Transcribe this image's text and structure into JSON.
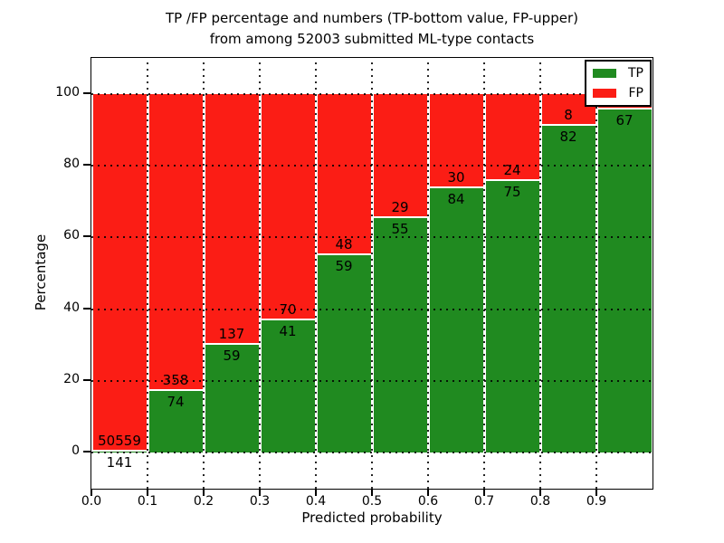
{
  "chart_data": {
    "type": "bar",
    "stacked": true,
    "title_line1": "TP /FP percentage and numbers (TP-bottom value, FP-upper)",
    "title_line2": "from among 52003 submitted ML-type contacts",
    "xlabel": "Predicted probability",
    "ylabel": "Percentage",
    "ylim": [
      -10,
      110
    ],
    "ytick_values": [
      0,
      20,
      40,
      60,
      80,
      100
    ],
    "ytick_labels": [
      "0",
      "20",
      "40",
      "60",
      "80",
      "100"
    ],
    "xtick_values": [
      0.0,
      0.1,
      0.2,
      0.3,
      0.4,
      0.5,
      0.6,
      0.7,
      0.8,
      0.9
    ],
    "xtick_labels": [
      "0.0",
      "0.1",
      "0.2",
      "0.3",
      "0.4",
      "0.5",
      "0.6",
      "0.7",
      "0.8",
      "0.9"
    ],
    "grid": "dotted, both axes",
    "categories": [
      "0.0-0.1",
      "0.1-0.2",
      "0.2-0.3",
      "0.3-0.4",
      "0.4-0.5",
      "0.5-0.6",
      "0.6-0.7",
      "0.7-0.8",
      "0.8-0.9",
      "0.9-1.0"
    ],
    "series": [
      {
        "name": "TP",
        "color": "#208a20",
        "counts": [
          141,
          74,
          59,
          41,
          59,
          55,
          84,
          75,
          82,
          67
        ],
        "labels": [
          "141",
          "74",
          "59",
          "41",
          "59",
          "55",
          "84",
          "75",
          "82",
          "67"
        ],
        "pct": [
          0.28,
          17.13,
          30.1,
          36.94,
          55.14,
          65.48,
          73.68,
          75.76,
          91.11,
          95.71
        ]
      },
      {
        "name": "FP",
        "color": "#fb1d15",
        "counts": [
          50559,
          358,
          137,
          70,
          48,
          29,
          30,
          24,
          8,
          null
        ],
        "labels": [
          "50559",
          "358",
          "137",
          "70",
          "48",
          "29",
          "30",
          "24",
          "8",
          ""
        ],
        "pct": [
          99.72,
          82.87,
          69.9,
          63.06,
          44.86,
          34.52,
          26.32,
          24.24,
          8.89,
          4.29
        ]
      }
    ],
    "legend": {
      "position": "upper right",
      "entries": [
        "TP",
        "FP"
      ]
    }
  }
}
